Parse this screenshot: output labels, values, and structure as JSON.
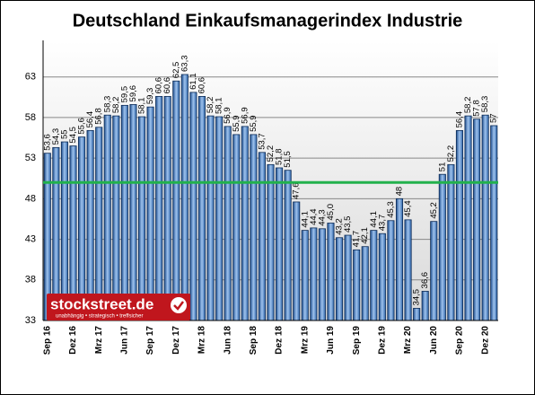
{
  "chart_data": {
    "type": "bar",
    "title": "Deutschland Einkaufsmanagerindex Industrie",
    "categories": [
      "Sep 16",
      null,
      null,
      "Dez 16",
      null,
      null,
      "Mrz 17",
      null,
      null,
      "Jun 17",
      null,
      null,
      "Sep 17",
      null,
      null,
      "Dez 17",
      null,
      null,
      "Mrz 18",
      null,
      null,
      "Jun 18",
      null,
      null,
      "Sep 18",
      null,
      null,
      "Dez 18",
      null,
      null,
      "Mrz 19",
      null,
      null,
      "Jun 19",
      null,
      null,
      "Sep 19",
      null,
      null,
      "Dez 19",
      null,
      null,
      "Mrz 20",
      null,
      null,
      "Jun 20",
      null,
      null,
      "Sep 20",
      null,
      null,
      "Dez 20",
      null
    ],
    "values": [
      53.6,
      54.3,
      55,
      54.5,
      55.6,
      56.4,
      56.8,
      58.3,
      58.2,
      59.5,
      59.6,
      58.1,
      59.3,
      60.6,
      60.6,
      62.5,
      63.3,
      61.1,
      60.6,
      58.2,
      58.1,
      56.9,
      55.9,
      56.9,
      55.9,
      53.7,
      52.2,
      51.8,
      51.5,
      47.6,
      44.1,
      44.4,
      44.3,
      45.0,
      43.2,
      43.5,
      41.7,
      42.1,
      44.1,
      43.7,
      45.3,
      48,
      45.4,
      34.5,
      36.6,
      45.2,
      51,
      52.2,
      56.4,
      58.2,
      57.8,
      58.3,
      57
    ],
    "value_labels": [
      "53,6",
      "54,3",
      "55",
      "54,5",
      "55,6",
      "56,4",
      "56,8",
      "58,3",
      "58,2",
      "59,5",
      "59,6",
      "58,1",
      "59,3",
      "60,6",
      "60,6",
      "62,5",
      "63,3",
      "61,1",
      "60,6",
      "58,2",
      "58,1",
      "56,9",
      "55,9",
      "56,9",
      "55,9",
      "53,7",
      "52,2",
      "51,8",
      "51,5",
      "47,6",
      "44,1",
      "44,4",
      "44,3",
      "45,0",
      "43,2",
      "43,5",
      "41,7",
      "42,1",
      "44,1",
      "43,7",
      "45,3",
      "48",
      "45,4",
      "34,5",
      "36,6",
      "45,2",
      "51",
      "52,2",
      "56,4",
      "58,2",
      "57,8",
      "58,3",
      "57"
    ],
    "color": "#5b8fd0",
    "ylim": [
      33,
      67.5
    ],
    "yticks": [
      33,
      38,
      43,
      48,
      53,
      58,
      63
    ],
    "grid": true,
    "reference_line": {
      "value": 50,
      "color": "#22b14c"
    },
    "watermark": {
      "brand": "stockstreet.de",
      "tagline": "unabhängig • strategisch • treffsicher"
    }
  }
}
